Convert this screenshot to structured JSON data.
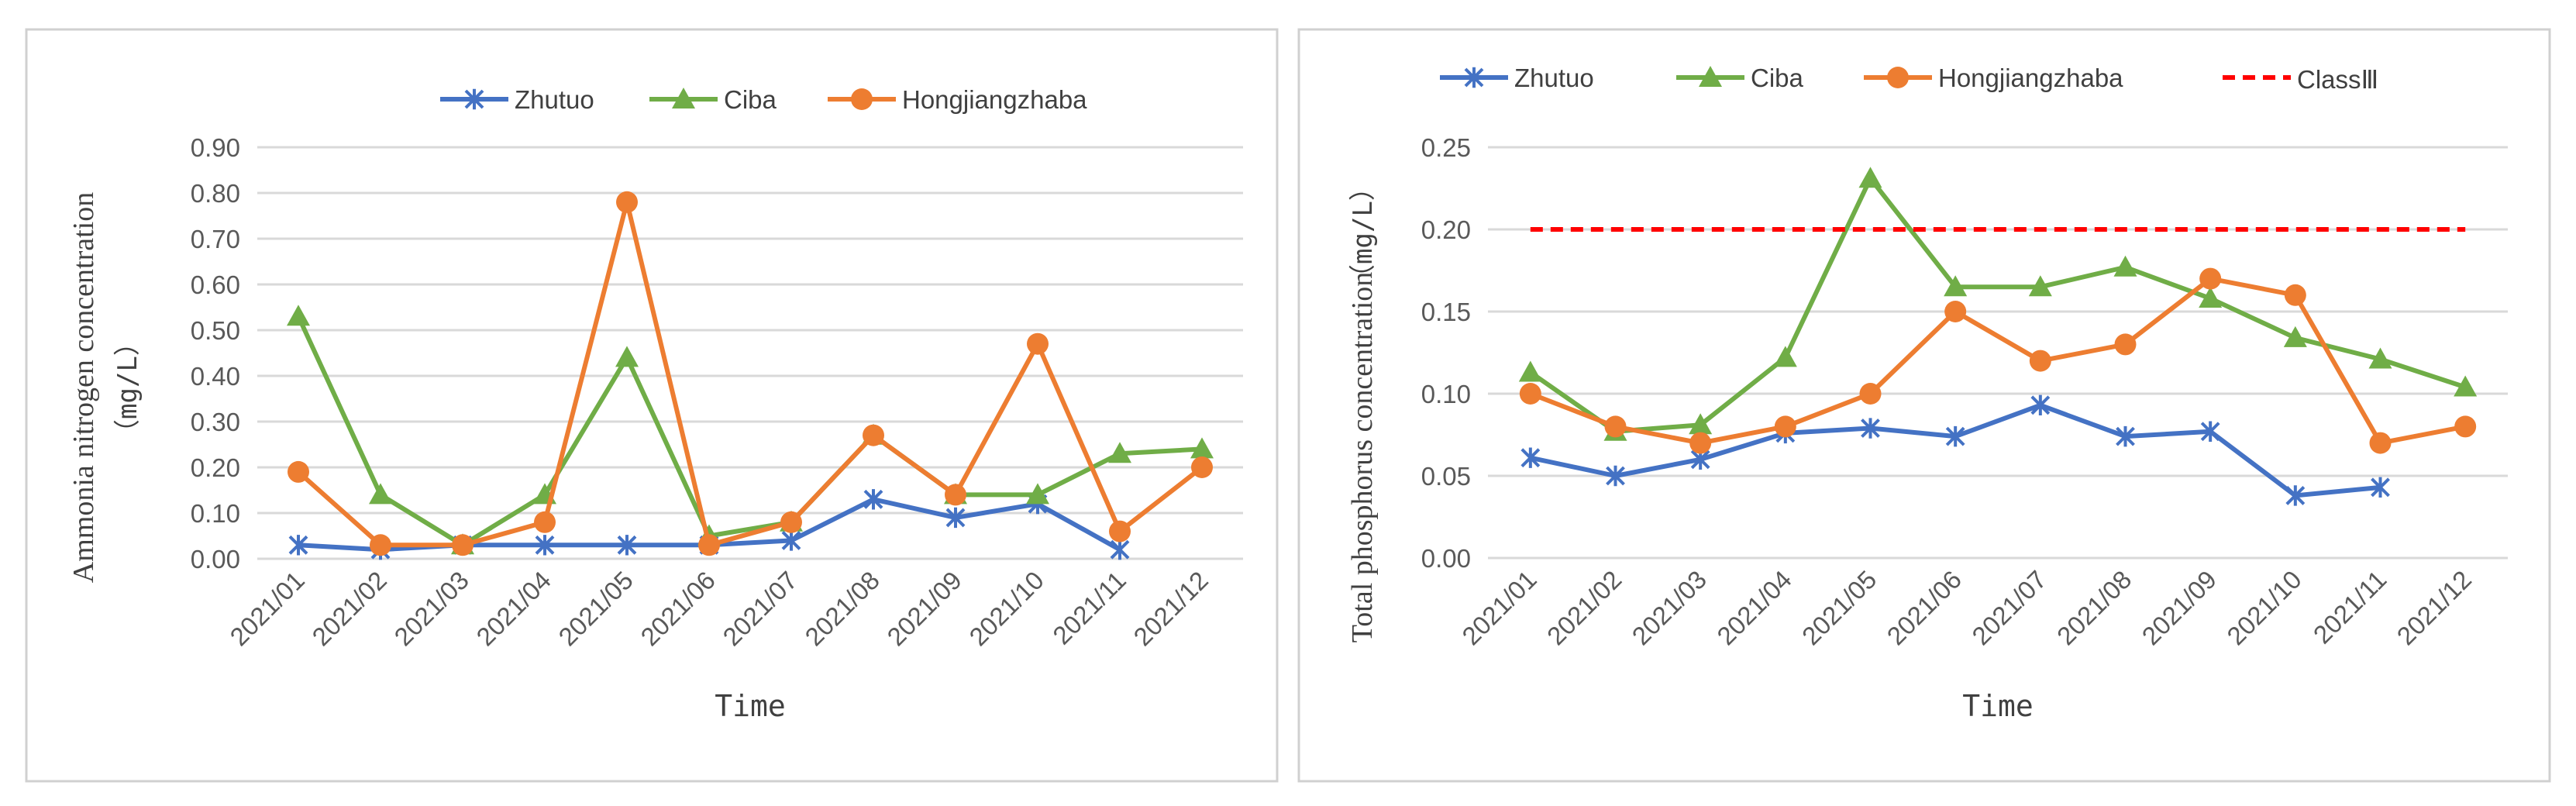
{
  "chart_data": [
    {
      "type": "line",
      "title": "",
      "xlabel": "Time",
      "ylabel": "Ammonia nitrogen concentration",
      "yunit": "（mg/L）",
      "ylim": [
        0,
        0.9
      ],
      "yticks": [
        "0.00",
        "0.10",
        "0.20",
        "0.30",
        "0.40",
        "0.50",
        "0.60",
        "0.70",
        "0.80",
        "0.90"
      ],
      "categories": [
        "2021/01",
        "2021/02",
        "2021/03",
        "2021/04",
        "2021/05",
        "2021/06",
        "2021/07",
        "2021/08",
        "2021/09",
        "2021/10",
        "2021/11",
        "2021/12"
      ],
      "grid": true,
      "legend_position": "top",
      "series": [
        {
          "name": "Zhutuo",
          "color": "#4472C4",
          "marker": "star",
          "values": [
            0.03,
            0.02,
            0.03,
            0.03,
            0.03,
            0.03,
            0.04,
            0.13,
            0.09,
            0.12,
            0.02,
            null
          ]
        },
        {
          "name": "Ciba",
          "color": "#70AD47",
          "marker": "triangle",
          "values": [
            0.53,
            0.14,
            0.03,
            0.14,
            0.44,
            0.05,
            0.08,
            0.27,
            0.14,
            0.14,
            0.23,
            0.24
          ]
        },
        {
          "name": "Hongjiangzhaba",
          "color": "#ED7D31",
          "marker": "circle",
          "values": [
            0.19,
            0.03,
            0.03,
            0.08,
            0.78,
            0.03,
            0.08,
            0.27,
            0.14,
            0.47,
            0.06,
            0.2
          ]
        }
      ]
    },
    {
      "type": "line",
      "title": "",
      "xlabel": "Time",
      "ylabel": "Total phosphorus concentration",
      "yunit": "（mg/L）",
      "ylim": [
        0,
        0.25
      ],
      "yticks": [
        "0.00",
        "0.05",
        "0.10",
        "0.15",
        "0.20",
        "0.25"
      ],
      "categories": [
        "2021/01",
        "2021/02",
        "2021/03",
        "2021/04",
        "2021/05",
        "2021/06",
        "2021/07",
        "2021/08",
        "2021/09",
        "2021/10",
        "2021/11",
        "2021/12"
      ],
      "grid": true,
      "legend_position": "top",
      "series": [
        {
          "name": "Zhutuo",
          "color": "#4472C4",
          "marker": "star",
          "values": [
            0.061,
            0.05,
            0.06,
            0.076,
            0.079,
            0.074,
            0.093,
            0.074,
            0.077,
            0.038,
            0.043,
            null
          ]
        },
        {
          "name": "Ciba",
          "color": "#70AD47",
          "marker": "triangle",
          "values": [
            0.113,
            0.077,
            0.081,
            0.122,
            0.231,
            0.165,
            0.165,
            0.177,
            0.158,
            0.134,
            0.121,
            0.104
          ]
        },
        {
          "name": "Hongjiangzhaba",
          "color": "#ED7D31",
          "marker": "circle",
          "values": [
            0.1,
            0.08,
            0.07,
            0.08,
            0.1,
            0.15,
            0.12,
            0.13,
            0.17,
            0.16,
            0.07,
            0.08
          ]
        },
        {
          "name": "ClassⅢ",
          "color": "#FF0000",
          "marker": "none",
          "dashed": true,
          "values": [
            0.2,
            0.2,
            0.2,
            0.2,
            0.2,
            0.2,
            0.2,
            0.2,
            0.2,
            0.2,
            0.2,
            0.2
          ]
        }
      ]
    }
  ]
}
